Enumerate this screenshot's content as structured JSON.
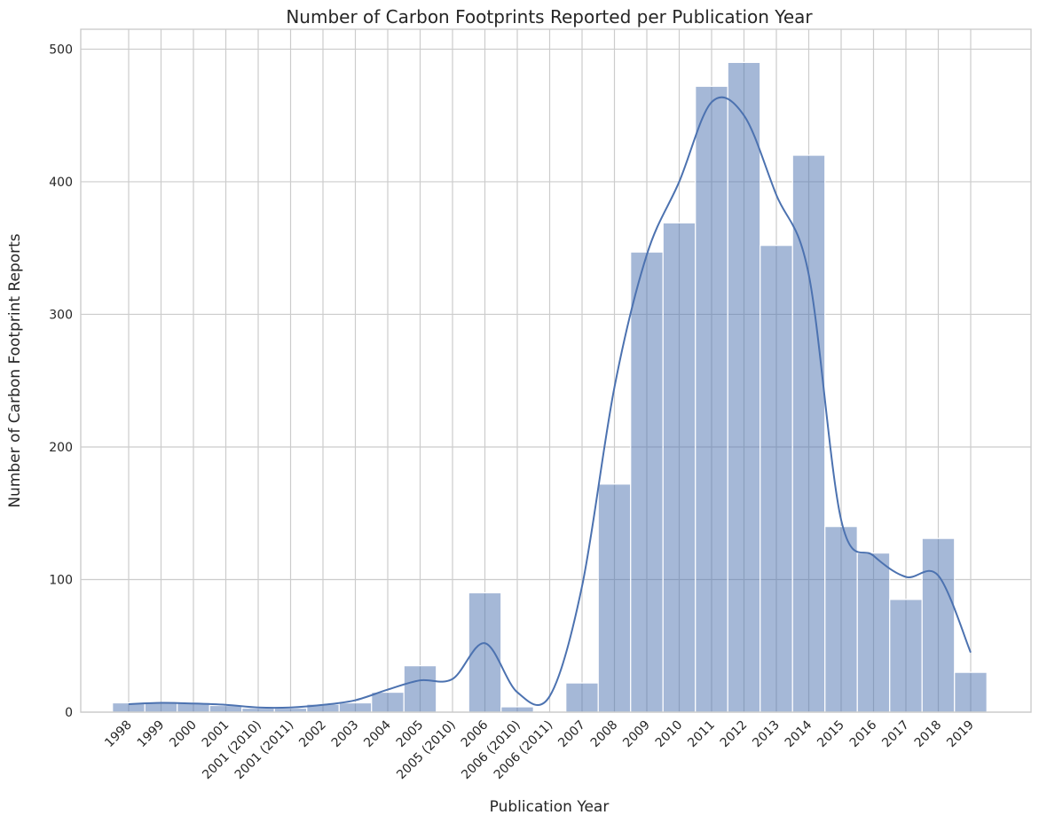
{
  "chart_data": {
    "type": "bar",
    "title": "Number of Carbon Footprints Reported per Publication Year",
    "xlabel": "Publication Year",
    "ylabel": "Number of Carbon Footprint Reports",
    "categories": [
      "1998",
      "1999",
      "2000",
      "2001",
      "2001 (2010)",
      "2001 (2011)",
      "2002",
      "2003",
      "2004",
      "2005",
      "2005 (2010)",
      "2006",
      "2006 (2010)",
      "2006 (2011)",
      "2007",
      "2008",
      "2009",
      "2010",
      "2011",
      "2012",
      "2013",
      "2014",
      "2015",
      "2016",
      "2017",
      "2018",
      "2019"
    ],
    "values": [
      7,
      7,
      7,
      5,
      3,
      3,
      6,
      7,
      15,
      35,
      0,
      90,
      4,
      0,
      22,
      172,
      347,
      369,
      472,
      490,
      352,
      420,
      140,
      120,
      85,
      131,
      30
    ],
    "kde": [
      6,
      7,
      6.5,
      5.5,
      3.5,
      3.5,
      5.5,
      9,
      17,
      24,
      25,
      52,
      15,
      12,
      95,
      245,
      345,
      400,
      460,
      450,
      390,
      330,
      145,
      118,
      102,
      103,
      45
    ],
    "ylim": [
      0,
      515
    ],
    "yticks": [
      0,
      100,
      200,
      300,
      400,
      500
    ],
    "grid": true,
    "colors": {
      "bar": "#4c72b0",
      "kde": "#4c72b0",
      "grid": "#cccccc"
    }
  }
}
